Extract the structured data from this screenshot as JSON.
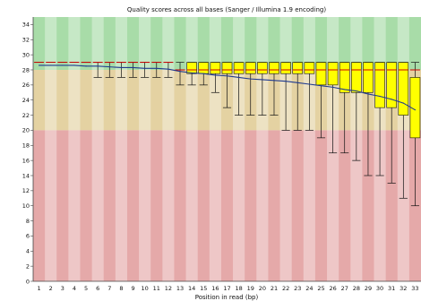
{
  "chart_data": {
    "type": "box",
    "title": "Quality scores across all bases (Sanger / Illumina 1.9 encoding)",
    "xlabel": "Position in read (bp)",
    "ylabel": "",
    "ylim": [
      0,
      35
    ],
    "yticks": [
      0,
      2,
      4,
      6,
      8,
      10,
      12,
      14,
      16,
      18,
      20,
      22,
      24,
      26,
      28,
      30,
      32,
      34
    ],
    "categories": [
      "1",
      "2",
      "3",
      "4",
      "5",
      "6",
      "7",
      "8",
      "9",
      "10",
      "11",
      "12",
      "13",
      "14",
      "15",
      "16",
      "17",
      "18",
      "19",
      "20",
      "21",
      "22",
      "23",
      "24",
      "25",
      "26",
      "27",
      "28",
      "29",
      "30",
      "31",
      "32",
      "33"
    ],
    "zones": [
      {
        "from": 28,
        "to": 35,
        "color": "#a8dca8"
      },
      {
        "from": 20,
        "to": 28,
        "color": "#e4d2a2"
      },
      {
        "from": 0,
        "to": 20,
        "color": "#e5a9a9"
      }
    ],
    "mean": [
      28.6,
      28.6,
      28.6,
      28.6,
      28.5,
      28.5,
      28.4,
      28.3,
      28.3,
      28.2,
      28.2,
      28.1,
      27.8,
      27.6,
      27.5,
      27.3,
      27.2,
      27.0,
      26.8,
      26.7,
      26.6,
      26.5,
      26.3,
      26.1,
      25.9,
      25.7,
      25.4,
      25.2,
      24.8,
      24.5,
      24.1,
      23.6,
      22.7
    ],
    "median": [
      29,
      29,
      29,
      29,
      29,
      29,
      29,
      29,
      29,
      29,
      29,
      29,
      28,
      28,
      28,
      28,
      28,
      28,
      28,
      28,
      28,
      28,
      28,
      28,
      28,
      28,
      28,
      28,
      28,
      28,
      28,
      28,
      28
    ],
    "q1": [
      29,
      29,
      29,
      29,
      29,
      29,
      29,
      29,
      29,
      29,
      29,
      29,
      29,
      27.5,
      27.5,
      27.5,
      27.5,
      27.5,
      27.5,
      27.5,
      27.5,
      27.5,
      27.5,
      27.5,
      26,
      26,
      25,
      25,
      25,
      23,
      23,
      22,
      19
    ],
    "q3": [
      29,
      29,
      29,
      29,
      29,
      29,
      29,
      29,
      29,
      29,
      29,
      29,
      29,
      29,
      29,
      29,
      29,
      29,
      29,
      29,
      29,
      29,
      29,
      29,
      29,
      29,
      29,
      29,
      29,
      29,
      29,
      29,
      27
    ],
    "low": [
      29,
      29,
      29,
      29,
      29,
      27,
      27,
      27,
      27,
      27,
      27,
      27,
      26,
      26,
      26,
      25,
      23,
      22,
      22,
      22,
      22,
      20,
      20,
      20,
      19,
      17,
      17,
      16,
      14,
      14,
      13,
      11,
      10
    ],
    "high": [
      29,
      29,
      29,
      29,
      29,
      29,
      29,
      29,
      29,
      29,
      29,
      29,
      29,
      29,
      29,
      29,
      29,
      29,
      29,
      29,
      29,
      29,
      29,
      29,
      29,
      29,
      29,
      29,
      29,
      29,
      29,
      29,
      29
    ],
    "colors": {
      "box": "#ffff00",
      "box_stroke": "#111111",
      "median": "#cc0000",
      "mean": "#1f3a8f",
      "whisker": "#111111"
    }
  }
}
